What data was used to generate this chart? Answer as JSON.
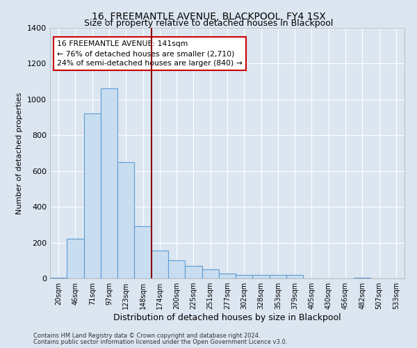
{
  "title": "16, FREEMANTLE AVENUE, BLACKPOOL, FY4 1SX",
  "subtitle": "Size of property relative to detached houses in Blackpool",
  "xlabel": "Distribution of detached houses by size in Blackpool",
  "ylabel": "Number of detached properties",
  "bar_labels": [
    "20sqm",
    "46sqm",
    "71sqm",
    "97sqm",
    "123sqm",
    "148sqm",
    "174sqm",
    "200sqm",
    "225sqm",
    "251sqm",
    "277sqm",
    "302sqm",
    "328sqm",
    "353sqm",
    "379sqm",
    "405sqm",
    "430sqm",
    "456sqm",
    "482sqm",
    "507sqm",
    "533sqm"
  ],
  "bar_heights": [
    5,
    220,
    920,
    1060,
    650,
    290,
    155,
    100,
    70,
    50,
    28,
    18,
    18,
    18,
    18,
    0,
    0,
    0,
    5,
    0,
    0
  ],
  "bar_color": "#c9ddf0",
  "bar_edge_color": "#5b9bd5",
  "background_color": "#dce6f1",
  "grid_color": "#ffffff",
  "vline_x": 5.5,
  "vline_color": "#8B0000",
  "annotation_text": "16 FREEMANTLE AVENUE: 141sqm\n← 76% of detached houses are smaller (2,710)\n24% of semi-detached houses are larger (840) →",
  "annotation_box_color": "#ffffff",
  "annotation_box_edge_color": "#cc0000",
  "ylim": [
    0,
    1400
  ],
  "yticks": [
    0,
    200,
    400,
    600,
    800,
    1000,
    1200,
    1400
  ],
  "footer1": "Contains HM Land Registry data © Crown copyright and database right 2024.",
  "footer2": "Contains public sector information licensed under the Open Government Licence v3.0."
}
